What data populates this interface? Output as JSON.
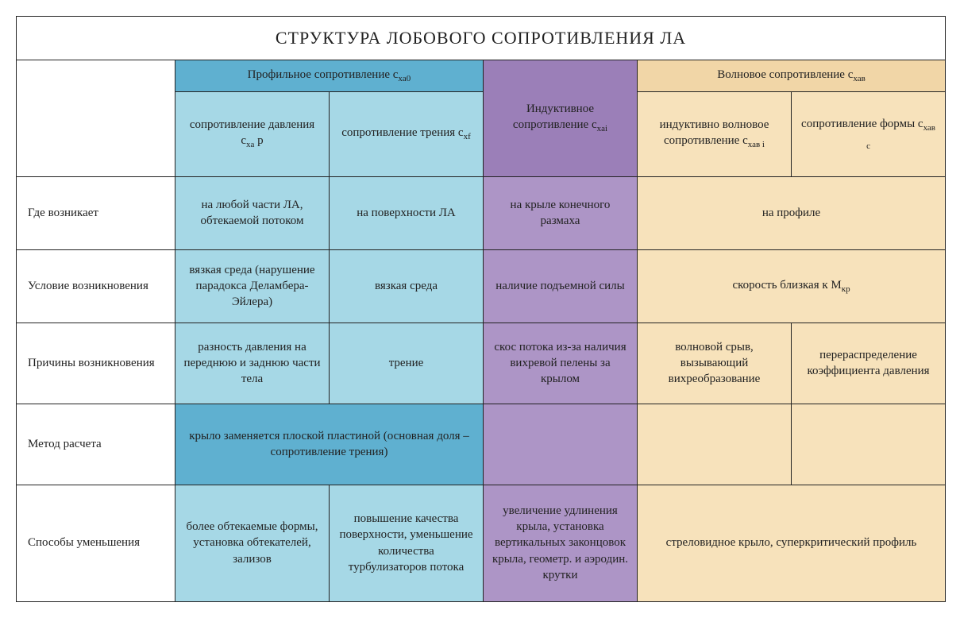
{
  "colors": {
    "blue_dark": "#5fb0d0",
    "blue_light": "#a6d8e6",
    "purple_dark": "#9b7fb8",
    "purple_light": "#ad95c6",
    "tan_dark": "#f1d6a7",
    "tan_light": "#f7e2bb",
    "white": "#ffffff"
  },
  "title": "СТРУКТУРА ЛОБОВОГО СОПРОТИВЛЕНИЯ ЛА",
  "hdr": {
    "profile": {
      "text": "Профильное сопротивление с",
      "sub": "xa0"
    },
    "inductive": {
      "text": "Индуктивное сопротивление с",
      "sub": "xai"
    },
    "wave": {
      "text": "Волновое сопротивление с",
      "sub": "хав"
    },
    "pressure": {
      "text": "сопротивление давления с",
      "sub": "xa",
      "suffix": " p"
    },
    "friction": {
      "text": "сопротивление трения с",
      "sub": "xf"
    },
    "indwave": {
      "text": "индуктивно волновое сопротивление с",
      "sub": "хав i"
    },
    "form": {
      "text": "сопротивление формы с",
      "sub": "хав с"
    }
  },
  "rows": {
    "where": {
      "label": "Где возникает",
      "c1": "на любой части ЛА, обтекаемой потоком",
      "c2": "на поверхности ЛА",
      "c3": "на крыле конечного размаха",
      "c45": "на профиле"
    },
    "cond": {
      "label": "Условие возникновения",
      "c1": "вязкая среда (нарушение парадокса Деламбера-Эйлера)",
      "c2": "вязкая среда",
      "c3": "наличие подъемной силы",
      "c45_pre": "скорость близкая к М",
      "c45_sub": "кр"
    },
    "cause": {
      "label": "Причины возникновения",
      "c1": "разность давления на переднюю и заднюю части тела",
      "c2": "трение",
      "c3": "скос потока из-за наличия вихревой пелены за крылом",
      "c4": "волновой срыв, вызывающий вихреобразование",
      "c5": "перераспределение коэффициента давления"
    },
    "calc": {
      "label": "Метод расчета",
      "c12": "крыло заменяется плоской пластиной (основная доля – сопротивление трения)"
    },
    "reduce": {
      "label": "Способы уменьшения",
      "c1": "более обтекаемые формы, установка обтекателей, зализов",
      "c2": "повышение качества поверхности, уменьшение количества турбулизаторов потока",
      "c3": "увеличение удлинения крыла, установка вертикальных законцовок крыла, геометр. и аэродин. крутки",
      "c45": "стреловидное крыло, суперкритический профиль"
    }
  }
}
